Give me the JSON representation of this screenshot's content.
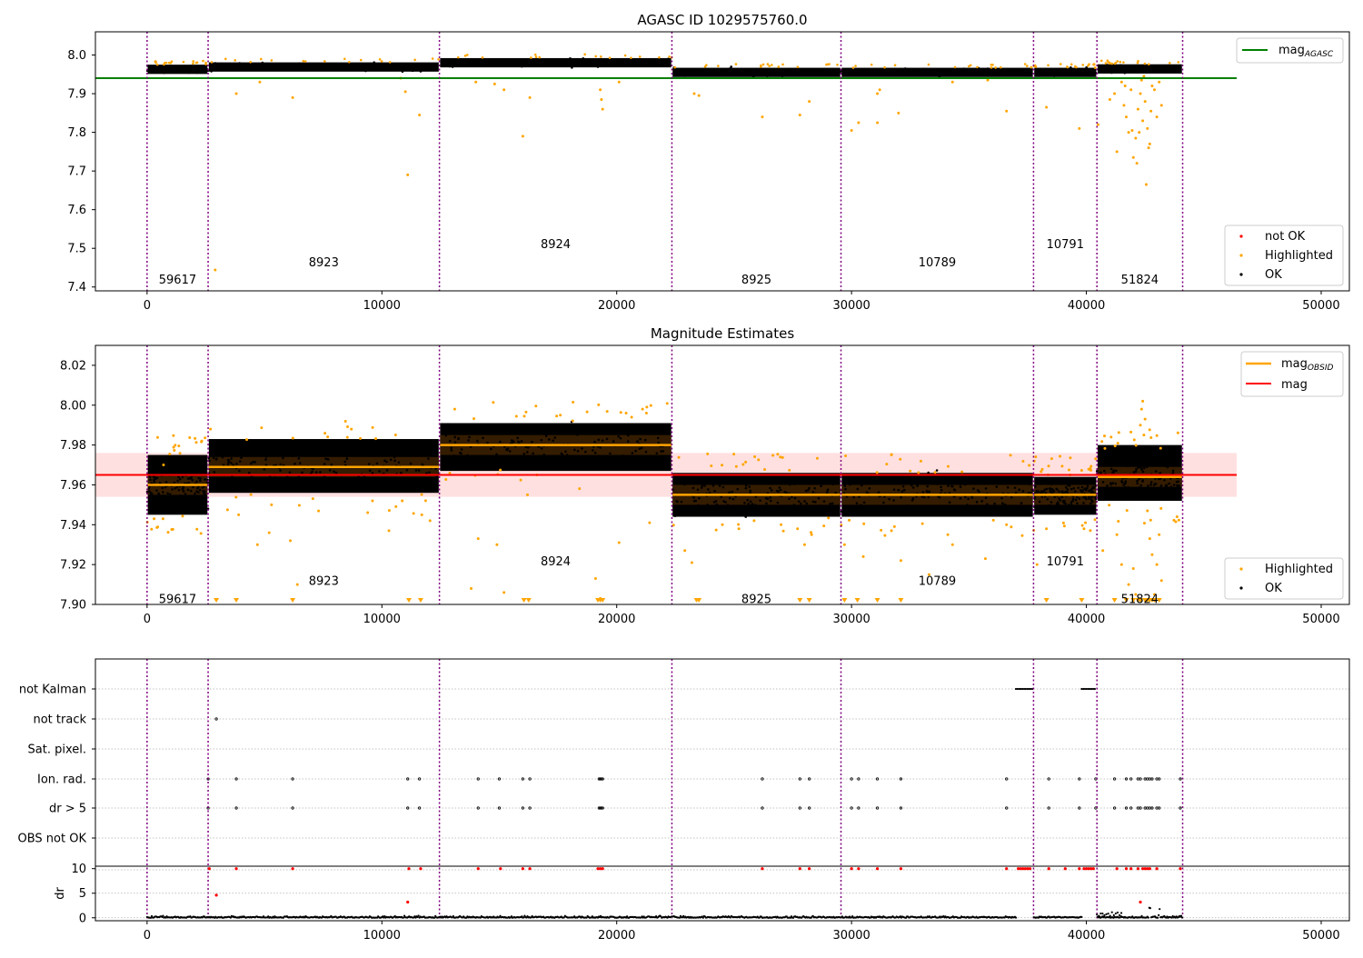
{
  "chart_data": [
    {
      "id": "agasc",
      "type": "scatter",
      "title": "AGASC ID 1029575760.0",
      "xlim": [
        -2200,
        51200
      ],
      "ylim": [
        7.39,
        8.06
      ],
      "xticks": [
        0,
        10000,
        20000,
        30000,
        40000,
        50000
      ],
      "xtick_labels": [
        "0",
        "10000",
        "20000",
        "30000",
        "40000",
        "50000"
      ],
      "yticks": [
        7.4,
        7.5,
        7.6,
        7.7,
        7.8,
        7.9,
        8.0
      ],
      "ytick_labels": [
        "7.4",
        "7.5",
        "7.6",
        "7.7",
        "7.8",
        "7.9",
        "8.0"
      ],
      "hline": {
        "name": "mag",
        "sub": "AGASC",
        "y": 7.94,
        "x_end": 46400,
        "color": "#008000"
      },
      "legend_top": [
        {
          "name": "mag",
          "sub": "AGASC",
          "color": "#008000",
          "kind": "line"
        }
      ],
      "legend_bottom": [
        {
          "name": "not OK",
          "color": "#ff0000",
          "kind": "dot"
        },
        {
          "name": "Highlighted",
          "color": "#ffa500",
          "kind": "dot"
        },
        {
          "name": "OK",
          "color": "#000000",
          "kind": "dot"
        }
      ],
      "segments": [
        {
          "obsid": "59617",
          "x0": 0,
          "x1": 2600,
          "mean": 7.963,
          "label_y": 7.42
        },
        {
          "obsid": "8923",
          "x0": 2600,
          "x1": 12450,
          "mean": 7.969,
          "label_y": 7.465
        },
        {
          "obsid": "8924",
          "x0": 12450,
          "x1": 22350,
          "mean": 7.98,
          "label_y": 7.512
        },
        {
          "obsid": "8925",
          "x0": 22350,
          "x1": 29550,
          "mean": 7.955,
          "label_y": 7.42
        },
        {
          "obsid": "10789",
          "x0": 29550,
          "x1": 37750,
          "mean": 7.955,
          "label_y": 7.465
        },
        {
          "obsid": "10791",
          "x0": 37750,
          "x1": 40450,
          "mean": 7.955,
          "label_y": 7.512
        },
        {
          "obsid": "51824",
          "x0": 40450,
          "x1": 44100,
          "mean": 7.964,
          "label_y": 7.42
        }
      ],
      "highlighted_outliers": [
        [
          2900,
          7.444
        ],
        [
          3800,
          7.9
        ],
        [
          4800,
          7.93
        ],
        [
          6200,
          7.89
        ],
        [
          10800,
          7.94
        ],
        [
          11000,
          7.905
        ],
        [
          11100,
          7.69
        ],
        [
          11600,
          7.845
        ],
        [
          14000,
          7.93
        ],
        [
          14800,
          7.925
        ],
        [
          15200,
          7.91
        ],
        [
          16000,
          7.79
        ],
        [
          16300,
          7.89
        ],
        [
          19300,
          7.91
        ],
        [
          19350,
          7.885
        ],
        [
          19400,
          7.86
        ],
        [
          20100,
          7.93
        ],
        [
          23300,
          7.9
        ],
        [
          23500,
          7.895
        ],
        [
          26200,
          7.84
        ],
        [
          27800,
          7.845
        ],
        [
          28200,
          7.88
        ],
        [
          30000,
          7.805
        ],
        [
          30300,
          7.825
        ],
        [
          31100,
          7.825
        ],
        [
          31100,
          7.9
        ],
        [
          31200,
          7.91
        ],
        [
          32000,
          7.85
        ],
        [
          34300,
          7.93
        ],
        [
          35800,
          7.935
        ],
        [
          36600,
          7.855
        ],
        [
          38300,
          7.865
        ],
        [
          39700,
          7.81
        ],
        [
          40500,
          7.82
        ],
        [
          41000,
          7.885
        ],
        [
          41200,
          7.9
        ],
        [
          41300,
          7.75
        ],
        [
          41500,
          7.93
        ],
        [
          41600,
          7.87
        ],
        [
          41700,
          7.84
        ],
        [
          41800,
          7.8
        ],
        [
          41900,
          7.91
        ],
        [
          42000,
          7.735
        ],
        [
          42100,
          7.785
        ],
        [
          42150,
          7.72
        ],
        [
          42200,
          7.86
        ],
        [
          42300,
          7.9
        ],
        [
          42400,
          7.83
        ],
        [
          42500,
          7.88
        ],
        [
          42550,
          7.665
        ],
        [
          42600,
          7.81
        ],
        [
          42650,
          7.76
        ],
        [
          42700,
          7.77
        ],
        [
          42800,
          7.92
        ],
        [
          42900,
          7.91
        ],
        [
          43000,
          7.84
        ],
        [
          43100,
          7.93
        ],
        [
          43200,
          7.87
        ],
        [
          42450,
          7.945
        ],
        [
          42350,
          7.935
        ],
        [
          41650,
          7.92
        ],
        [
          41950,
          7.805
        ],
        [
          42250,
          7.8
        ],
        [
          42750,
          7.855
        ]
      ],
      "vlines": [
        0,
        2600,
        12450,
        22350,
        29550,
        37750,
        40450,
        44100
      ]
    },
    {
      "id": "estimates",
      "type": "scatter",
      "title": "Magnitude Estimates",
      "xlim": [
        -2200,
        51200
      ],
      "ylim": [
        7.9,
        8.03
      ],
      "xticks": [
        0,
        10000,
        20000,
        30000,
        40000,
        50000
      ],
      "xtick_labels": [
        "0",
        "10000",
        "20000",
        "30000",
        "40000",
        "50000"
      ],
      "yticks": [
        7.9,
        7.92,
        7.94,
        7.96,
        7.98,
        8.0,
        8.02
      ],
      "ytick_labels": [
        "7.90",
        "7.92",
        "7.94",
        "7.96",
        "7.98",
        "8.00",
        "8.02"
      ],
      "mag": {
        "y": 7.965,
        "band": [
          7.954,
          7.976
        ],
        "x_end": 46400,
        "color": "#ff0000"
      },
      "legend_top": [
        {
          "name": "mag",
          "sub": "OBSID",
          "color": "#ffa500",
          "kind": "line"
        },
        {
          "name": "mag",
          "sub": "",
          "color": "#ff0000",
          "kind": "line"
        }
      ],
      "legend_bottom": [
        {
          "name": "Highlighted",
          "color": "#ffa500",
          "kind": "dot"
        },
        {
          "name": "OK",
          "color": "#000000",
          "kind": "dot"
        }
      ],
      "segments": [
        {
          "obsid": "59617",
          "x0": 0,
          "x1": 2600,
          "mean": 7.96,
          "lo": 7.945,
          "hi": 7.975,
          "label_y": 7.903
        },
        {
          "obsid": "8923",
          "x0": 2600,
          "x1": 12450,
          "mean": 7.969,
          "lo": 7.956,
          "hi": 7.983,
          "label_y": 7.912
        },
        {
          "obsid": "8924",
          "x0": 12450,
          "x1": 22350,
          "mean": 7.98,
          "lo": 7.967,
          "hi": 7.991,
          "label_y": 7.922
        },
        {
          "obsid": "8925",
          "x0": 22350,
          "x1": 29550,
          "mean": 7.955,
          "lo": 7.944,
          "hi": 7.966,
          "label_y": 7.903
        },
        {
          "obsid": "10789",
          "x0": 29550,
          "x1": 37750,
          "mean": 7.955,
          "lo": 7.944,
          "hi": 7.966,
          "label_y": 7.912
        },
        {
          "obsid": "10791",
          "x0": 37750,
          "x1": 40450,
          "mean": 7.955,
          "lo": 7.945,
          "hi": 7.964,
          "label_y": 7.922
        },
        {
          "obsid": "51824",
          "x0": 40450,
          "x1": 44100,
          "mean": 7.964,
          "lo": 7.952,
          "hi": 7.98,
          "label_y": 7.903
        }
      ],
      "highlighted_outliers": [
        [
          300,
          7.943
        ],
        [
          700,
          7.97
        ],
        [
          2700,
          7.988
        ],
        [
          3900,
          7.945
        ],
        [
          4700,
          7.93
        ],
        [
          5200,
          7.936
        ],
        [
          5300,
          7.95
        ],
        [
          6100,
          7.932
        ],
        [
          6400,
          7.91
        ],
        [
          8700,
          7.988
        ],
        [
          9600,
          7.952
        ],
        [
          10300,
          7.937
        ],
        [
          11700,
          7.945
        ],
        [
          12050,
          7.942
        ],
        [
          13100,
          7.998
        ],
        [
          13800,
          7.908
        ],
        [
          14100,
          7.933
        ],
        [
          14900,
          7.93
        ],
        [
          15200,
          7.906
        ],
        [
          16200,
          7.955
        ],
        [
          16600,
          7.965
        ],
        [
          17600,
          7.995
        ],
        [
          19100,
          7.913
        ],
        [
          19300,
          7.903
        ],
        [
          20100,
          7.931
        ],
        [
          20400,
          7.996
        ],
        [
          21100,
          7.998
        ],
        [
          21400,
          7.941
        ],
        [
          22900,
          7.927
        ],
        [
          23200,
          7.921
        ],
        [
          24500,
          7.94
        ],
        [
          25200,
          7.938
        ],
        [
          27000,
          7.94
        ],
        [
          27700,
          7.938
        ],
        [
          28000,
          7.93
        ],
        [
          28300,
          7.935
        ],
        [
          29700,
          7.93
        ],
        [
          30500,
          7.924
        ],
        [
          31700,
          7.937
        ],
        [
          32100,
          7.922
        ],
        [
          33300,
          7.915
        ],
        [
          34100,
          7.935
        ],
        [
          34300,
          7.93
        ],
        [
          35700,
          7.923
        ],
        [
          36600,
          7.94
        ],
        [
          37900,
          7.92
        ],
        [
          38300,
          7.938
        ],
        [
          39900,
          7.938
        ],
        [
          40700,
          7.927
        ],
        [
          41300,
          7.935
        ],
        [
          41500,
          7.92
        ],
        [
          41800,
          7.91
        ],
        [
          42000,
          7.918
        ],
        [
          42100,
          7.905
        ],
        [
          42300,
          7.99
        ],
        [
          42350,
          7.998
        ],
        [
          42400,
          8.002
        ],
        [
          42450,
          7.985
        ],
        [
          42500,
          7.993
        ],
        [
          42700,
          7.933
        ],
        [
          42800,
          7.925
        ],
        [
          43000,
          7.92
        ],
        [
          43100,
          7.935
        ],
        [
          43200,
          7.912
        ],
        [
          42900,
          7.905
        ],
        [
          42600,
          7.947
        ]
      ],
      "clipped_markers": [
        [
          2950
        ],
        [
          3800
        ],
        [
          6200
        ],
        [
          11150
        ],
        [
          11650
        ],
        [
          16050
        ],
        [
          16250
        ],
        [
          19200
        ],
        [
          19300
        ],
        [
          19400
        ],
        [
          23400
        ],
        [
          23500
        ],
        [
          27800
        ],
        [
          28200
        ],
        [
          29700
        ],
        [
          30250
        ],
        [
          31100
        ],
        [
          32100
        ],
        [
          38300
        ],
        [
          39800
        ],
        [
          41200
        ],
        [
          41700
        ],
        [
          42000
        ],
        [
          42200
        ],
        [
          42300
        ],
        [
          42500
        ],
        [
          42600
        ],
        [
          42700
        ],
        [
          42800
        ],
        [
          42900
        ],
        [
          43100
        ]
      ],
      "vlines": [
        0,
        2600,
        12450,
        22350,
        29550,
        37750,
        40450,
        44100
      ]
    },
    {
      "id": "flags",
      "type": "scatter",
      "xlim": [
        -2200,
        51200
      ],
      "categories": [
        "not Kalman",
        "not track",
        "Sat. pixel.",
        "Ion. rad.",
        "dr > 5",
        "OBS not OK"
      ],
      "flags": {
        "not Kalman": {
          "ranges": [
            [
              37000,
              37700
            ],
            [
              39800,
              40400
            ]
          ],
          "points": []
        },
        "not track": {
          "ranges": [],
          "points": [
            2950
          ]
        },
        "Sat. pixel.": {
          "ranges": [],
          "points": []
        },
        "Ion. rad.": {
          "ranges": [],
          "points": [
            2600,
            3800,
            6200,
            11100,
            11600,
            14100,
            15000,
            16000,
            16300,
            19250,
            19300,
            19350,
            19400,
            26200,
            27800,
            28200,
            30000,
            30300,
            31100,
            32100,
            36600,
            38400,
            39700,
            40400,
            41200,
            41700,
            41900,
            42200,
            42300,
            42500,
            42600,
            42700,
            42800,
            43000,
            43100,
            44000
          ]
        },
        "dr > 5": {
          "ranges": [],
          "points": [
            2600,
            3800,
            6200,
            11100,
            11600,
            14100,
            15000,
            16000,
            16300,
            19250,
            19300,
            19350,
            19400,
            26200,
            27800,
            28200,
            30000,
            30300,
            31100,
            32100,
            36600,
            38400,
            39700,
            40400,
            41200,
            41700,
            41900,
            42200,
            42300,
            42500,
            42600,
            42700,
            42800,
            43000,
            43100,
            44000
          ]
        },
        "OBS not OK": {
          "ranges": [],
          "points": []
        }
      },
      "vlines": [
        0,
        2600,
        12450,
        22350,
        29550,
        37750,
        40450,
        44100
      ]
    },
    {
      "id": "dr",
      "type": "scatter",
      "ylabel": "dr",
      "xlim": [
        -2200,
        51200
      ],
      "ylim": [
        -0.6,
        10.5
      ],
      "xticks": [
        0,
        10000,
        20000,
        30000,
        40000,
        50000
      ],
      "xtick_labels": [
        "0",
        "10000",
        "20000",
        "30000",
        "40000",
        "50000"
      ],
      "yticks": [
        0,
        5,
        10
      ],
      "ytick_labels": [
        "0",
        "5",
        "10"
      ],
      "clip_at": 10,
      "red_points": [
        [
          2650,
          10
        ],
        [
          2950,
          4.6
        ],
        [
          3800,
          10
        ],
        [
          6200,
          10
        ],
        [
          11100,
          3.2
        ],
        [
          11150,
          10
        ],
        [
          11650,
          10
        ],
        [
          14100,
          10
        ],
        [
          15050,
          10
        ],
        [
          16000,
          10
        ],
        [
          16300,
          10
        ],
        [
          19200,
          10
        ],
        [
          19300,
          10
        ],
        [
          19400,
          10
        ],
        [
          26200,
          10
        ],
        [
          27800,
          10
        ],
        [
          28200,
          10
        ],
        [
          30000,
          10
        ],
        [
          30300,
          10
        ],
        [
          31100,
          10
        ],
        [
          32100,
          10
        ],
        [
          36600,
          10
        ],
        [
          37100,
          10
        ],
        [
          37200,
          10
        ],
        [
          37300,
          10
        ],
        [
          37400,
          10
        ],
        [
          37500,
          10
        ],
        [
          37600,
          10
        ],
        [
          38400,
          10
        ],
        [
          39100,
          10
        ],
        [
          39700,
          10
        ],
        [
          39900,
          10
        ],
        [
          40000,
          10
        ],
        [
          40100,
          10
        ],
        [
          40200,
          10
        ],
        [
          40300,
          10
        ],
        [
          41300,
          10
        ],
        [
          41700,
          10
        ],
        [
          41900,
          10
        ],
        [
          42200,
          10
        ],
        [
          42300,
          3.2
        ],
        [
          42400,
          10
        ],
        [
          42500,
          10
        ],
        [
          42600,
          10
        ],
        [
          42700,
          10
        ],
        [
          43000,
          10
        ],
        [
          44000,
          10
        ]
      ],
      "black_points_note": "near zero",
      "vlines": [
        0,
        2600,
        12450,
        22350,
        29550,
        37750,
        40450,
        44100
      ]
    }
  ]
}
